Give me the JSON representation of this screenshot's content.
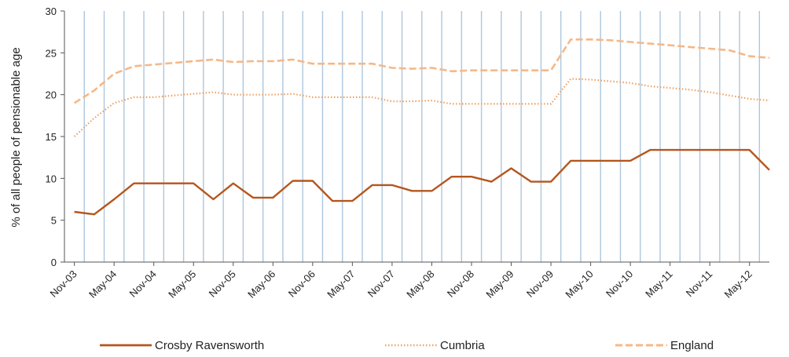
{
  "chart_data": {
    "type": "line",
    "title": "",
    "ylabel": "% of all people of pensionable age",
    "xlabel": "",
    "ylim": [
      0,
      30
    ],
    "yticks": [
      0,
      5,
      10,
      15,
      20,
      25,
      30
    ],
    "x_tick_labels": [
      "Nov-03",
      "May-04",
      "Nov-04",
      "May-05",
      "Nov-05",
      "May-06",
      "Nov-06",
      "May-07",
      "Nov-07",
      "May-08",
      "Nov-08",
      "May-09",
      "Nov-09",
      "May-10",
      "Nov-10",
      "May-11",
      "Nov-11",
      "May-12"
    ],
    "vertical_gridlines": true,
    "legend_position": "bottom",
    "series": [
      {
        "name": "Crosby Ravensworth",
        "color": "#b5561d",
        "style": "solid",
        "values": [
          6.0,
          5.7,
          7.5,
          9.4,
          9.4,
          9.4,
          9.4,
          7.5,
          9.4,
          7.7,
          7.7,
          9.7,
          9.7,
          7.3,
          7.3,
          9.2,
          9.2,
          8.5,
          8.5,
          10.2,
          10.2,
          9.6,
          11.2,
          9.6,
          9.6,
          12.1,
          12.1,
          12.1,
          12.1,
          13.4,
          13.4,
          13.4,
          13.4,
          13.4,
          13.4,
          11.0
        ]
      },
      {
        "name": "Cumbria",
        "color": "#f0a060",
        "style": "dotted",
        "values": [
          15.0,
          17.2,
          19.0,
          19.7,
          19.7,
          19.9,
          20.1,
          20.3,
          20.0,
          20.0,
          20.0,
          20.1,
          19.7,
          19.7,
          19.7,
          19.7,
          19.2,
          19.2,
          19.3,
          18.9,
          18.9,
          18.9,
          18.9,
          18.9,
          18.9,
          21.9,
          21.8,
          21.6,
          21.4,
          21.0,
          20.8,
          20.6,
          20.3,
          19.9,
          19.5,
          19.3
        ]
      },
      {
        "name": "England",
        "color": "#f5b888",
        "style": "dashed",
        "values": [
          19.0,
          20.5,
          22.5,
          23.4,
          23.6,
          23.8,
          24.0,
          24.2,
          23.9,
          24.0,
          24.0,
          24.2,
          23.7,
          23.7,
          23.7,
          23.7,
          23.2,
          23.1,
          23.2,
          22.8,
          22.9,
          22.9,
          22.9,
          22.9,
          22.9,
          26.6,
          26.6,
          26.5,
          26.3,
          26.1,
          25.9,
          25.7,
          25.5,
          25.3,
          24.6,
          24.4
        ]
      }
    ]
  }
}
